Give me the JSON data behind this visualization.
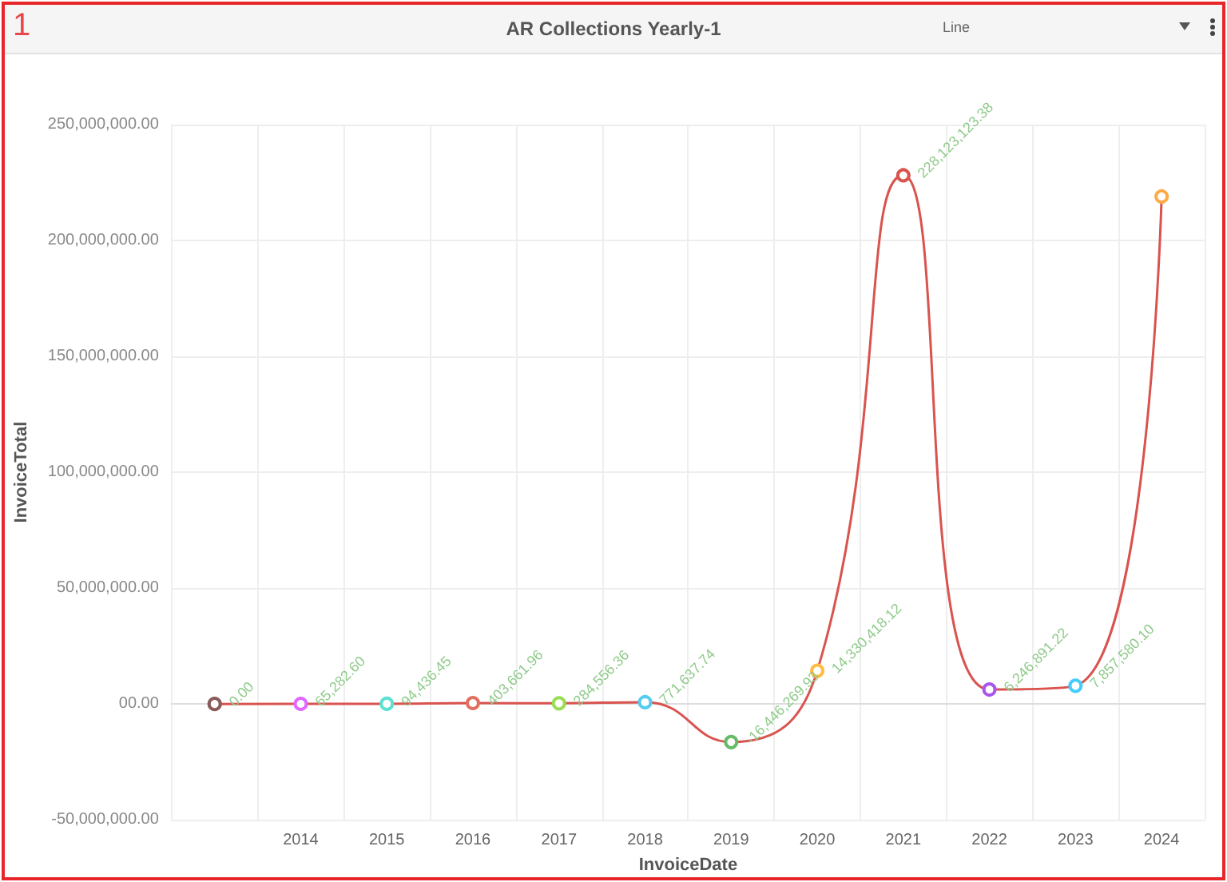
{
  "chart_data": {
    "type": "line",
    "title": "AR Collections Yearly-1",
    "xlabel": "InvoiceDate",
    "ylabel": "InvoiceTotal",
    "annotations": [
      "1",
      "Line"
    ],
    "categories": [
      null,
      "2014",
      "2015",
      "2016",
      "2017",
      "2018",
      "2019",
      "2020",
      "2021",
      "2022",
      "2023",
      "2024"
    ],
    "series": [
      {
        "color": "#d9534f",
        "colors": [
          "#8b5a5a",
          "#e066ff",
          "#5ce0d0",
          "#e07060",
          "#99dd55",
          "#55ccee",
          "#66bb66",
          "#ffbb44",
          "#d9534f",
          "#aa55ee",
          "#44ccff",
          "#ffaa44"
        ],
        "values": [
          0,
          65282.6,
          94436.45,
          403661.96,
          284556.36,
          771637.74,
          -16446269.93,
          14330418.12,
          228123123.38,
          6246891.22,
          7857580.1,
          219000000
        ],
        "value_labels": [
          "0.00",
          "65,282.60",
          "94,436.45",
          "403,661.96",
          "284,556.36",
          "771,637.74",
          "-16,446,269.93",
          "14,330,418.12",
          "228,123,123.38",
          "6,246,891.22",
          "7,857,580.10",
          null
        ]
      }
    ],
    "ylim": [
      -50000000,
      250000000
    ],
    "yticks": [
      {
        "value": -50000000,
        "label": "-50,000,000.00"
      },
      {
        "value": 0,
        "label": "00.00"
      },
      {
        "value": 50000000,
        "label": "50,000,000.00"
      },
      {
        "value": 100000000,
        "label": "100,000,000.00"
      },
      {
        "value": 150000000,
        "label": "150,000,000.00"
      },
      {
        "value": 200000000,
        "label": "200,000,000.00"
      },
      {
        "value": 250000000,
        "label": "250,000,000.00"
      }
    ],
    "grid": true,
    "marker": "circle",
    "line_style": "solid"
  }
}
